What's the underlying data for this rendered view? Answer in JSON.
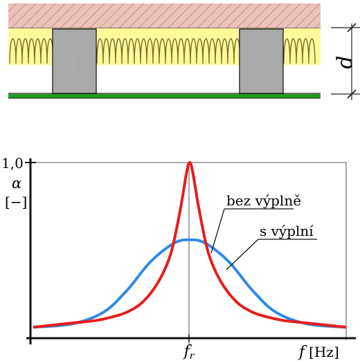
{
  "cross_section": {
    "dimension_label": "d",
    "colors": {
      "ceiling_fill": "#e9c3ba",
      "ceiling_hatch": "#c96a5b",
      "insulation_fill": "#fff99a",
      "spring": "#7a6a2a",
      "joist_fill": "#b0b0b0",
      "green_layer": "#1f9b1f"
    }
  },
  "chart_data": {
    "type": "line",
    "y_axis": {
      "tick_label": "1,0",
      "symbol": "α",
      "unit": "[−]"
    },
    "x_axis": {
      "tick_label_base": "f",
      "tick_label_sub": "r",
      "symbol": "f",
      "unit": "[Hz]"
    },
    "ylim": [
      0,
      1
    ],
    "grid": true,
    "series": [
      {
        "name": "bez výplně",
        "color": "#e81c1c",
        "x": [
          -1,
          -0.8,
          -0.6,
          -0.5,
          -0.4,
          -0.3,
          -0.2,
          -0.12,
          -0.06,
          -0.02,
          0,
          0.02,
          0.06,
          0.12,
          0.2,
          0.3,
          0.4,
          0.5,
          0.6,
          0.8,
          1
        ],
        "y": [
          0.02,
          0.04,
          0.06,
          0.08,
          0.11,
          0.17,
          0.29,
          0.46,
          0.72,
          0.94,
          1.0,
          0.94,
          0.72,
          0.46,
          0.29,
          0.17,
          0.11,
          0.08,
          0.06,
          0.04,
          0.02
        ]
      },
      {
        "name": "s výplní",
        "color": "#2e8ae6",
        "x": [
          -1,
          -0.75,
          -0.55,
          -0.4,
          -0.25,
          -0.1,
          0,
          0.1,
          0.25,
          0.4,
          0.55,
          0.75,
          1
        ],
        "y": [
          0.02,
          0.04,
          0.11,
          0.24,
          0.41,
          0.52,
          0.54,
          0.52,
          0.41,
          0.24,
          0.11,
          0.04,
          0.02
        ]
      }
    ]
  }
}
